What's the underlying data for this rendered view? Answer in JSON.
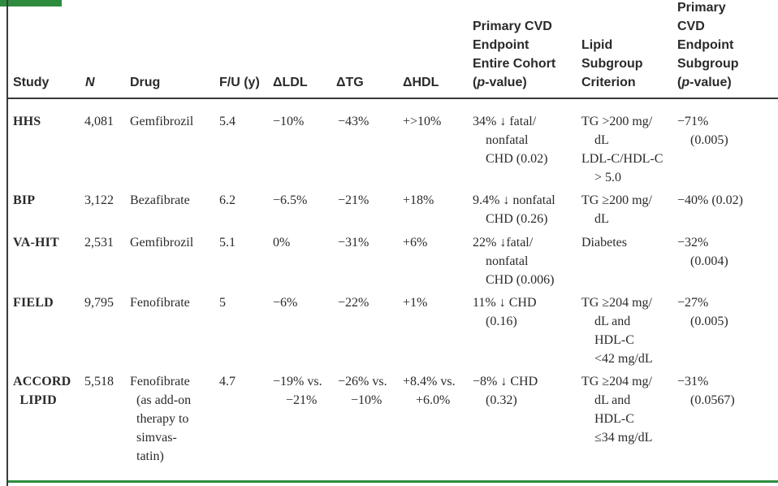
{
  "headers": {
    "study": "Study",
    "n": "N",
    "drug": "Drug",
    "fu": "F/U (y)",
    "dldl": "ΔLDL",
    "dtg": "ΔTG",
    "dhdl": "ΔHDL",
    "primary": "Primary CVD\nEndpoint\nEntire Cohort\n(p-value)",
    "lipid": "Lipid\nSubgroup\nCriterion",
    "subgroup": "Primary\nCVD\nEndpoint\nSubgroup\n(p-value)"
  },
  "rows": [
    {
      "study": "HHS",
      "n": "4,081",
      "drug": "Gemfibrozil",
      "fu": "5.4",
      "dldl": "−10%",
      "dtg": "−43%",
      "dhdl": "+>10%",
      "primary": "34% ↓ fatal/\n    nonfatal\n    CHD (0.02)",
      "lipid": "TG >200 mg/\n    dL\nLDL-C/HDL-C\n    > 5.0",
      "subgroup": "−71%\n    (0.005)"
    },
    {
      "study": "BIP",
      "n": "3,122",
      "drug": "Bezafibrate",
      "fu": "6.2",
      "dldl": "−6.5%",
      "dtg": "−21%",
      "dhdl": "+18%",
      "primary": "9.4% ↓ nonfatal\n    CHD (0.26)",
      "lipid": "TG ≥200 mg/\n    dL",
      "subgroup": "−40% (0.02)"
    },
    {
      "study": "VA-HIT",
      "n": "2,531",
      "drug": "Gemfibrozil",
      "fu": "5.1",
      "dldl": "0%",
      "dtg": "−31%",
      "dhdl": "+6%",
      "primary": "22% ↓fatal/\n    nonfatal\n    CHD (0.006)",
      "lipid": "Diabetes",
      "subgroup": "−32%\n    (0.004)"
    },
    {
      "study": "FIELD",
      "n": "9,795",
      "drug": "Fenofibrate",
      "fu": "5",
      "dldl": "−6%",
      "dtg": "−22%",
      "dhdl": "+1%",
      "primary": "11% ↓ CHD\n    (0.16)",
      "lipid": "TG ≥204 mg/\n    dL and\n    HDL-C\n    <42 mg/dL",
      "subgroup": "−27%\n    (0.005)"
    },
    {
      "study": "ACCORD\n  LIPID",
      "n": "5,518",
      "drug": "Fenofibrate\n  (as add-on\n  therapy to\n  simvas-\n  tatin)",
      "fu": "4.7",
      "dldl": "−19% vs.\n    −21%",
      "dtg": "−26% vs.\n    −10%",
      "dhdl": "+8.4% vs.\n    +6.0%",
      "primary": "−8% ↓ CHD\n    (0.32)",
      "lipid": "TG ≥204 mg/\n    dL and\n    HDL-C\n    ≤34 mg/dL",
      "subgroup": "−31%\n    (0.0567)"
    }
  ]
}
